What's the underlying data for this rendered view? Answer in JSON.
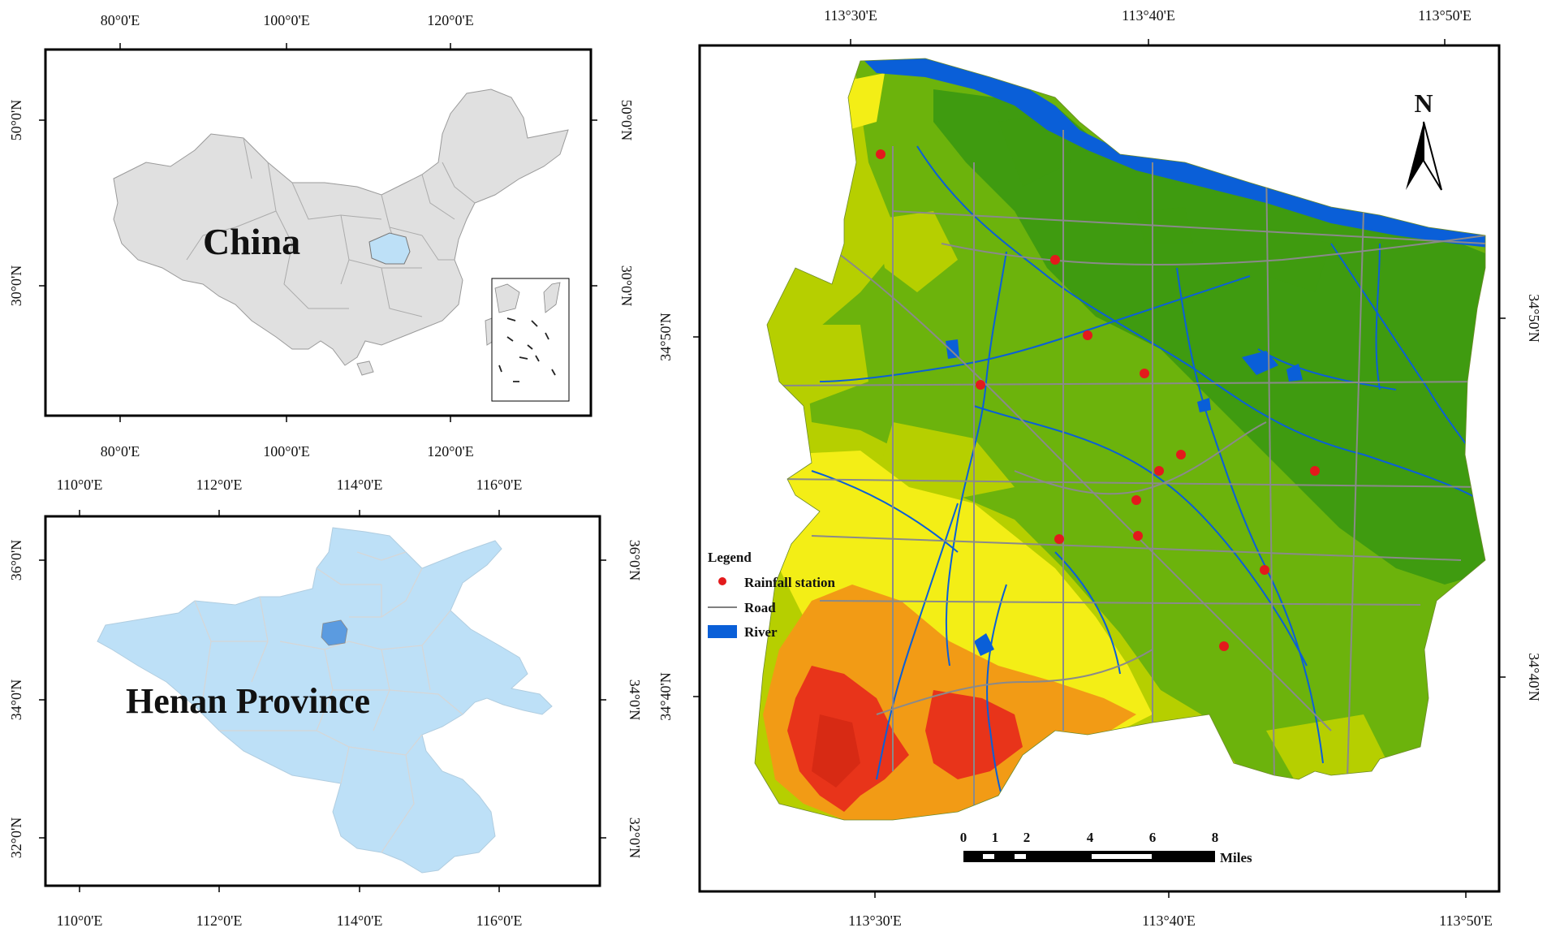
{
  "china_panel": {
    "label": "China",
    "lon_labels": [
      "80°0'E",
      "100°0'E",
      "120°0'E"
    ],
    "lat_labels": [
      "50°0'N",
      "30°0'N"
    ],
    "colors": {
      "land": "#e0e0e0",
      "highlight": "#bde0f7",
      "border": "#b0b0b0"
    }
  },
  "henan_panel": {
    "label": "Henan Province",
    "lon_labels": [
      "110°0'E",
      "112°0'E",
      "114°0'E",
      "116°0'E"
    ],
    "lat_labels": [
      "36°0'N",
      "34°0'N",
      "32°0'N"
    ],
    "colors": {
      "province": "#bde0f7",
      "city": "#5b9be0",
      "border": "#c8c8c8"
    }
  },
  "study_panel": {
    "lon_labels": [
      "113°30'E",
      "113°40'E",
      "113°50'E"
    ],
    "lat_labels": [
      "34°50'N",
      "34°40'N"
    ],
    "north_label": "N",
    "legend": {
      "title": "Legend",
      "items": [
        {
          "label": "Rainfall station",
          "symbol": "dot",
          "color": "#e31a1c"
        },
        {
          "label": "Road",
          "symbol": "line",
          "color": "#808080"
        },
        {
          "label": "River",
          "symbol": "box",
          "color": "#0a5fd8"
        }
      ]
    },
    "scale_bar": {
      "ticks": [
        "0",
        "1",
        "2",
        "4",
        "6",
        "8"
      ],
      "unit": "Miles"
    },
    "colors": {
      "green_dark": "#3f9b10",
      "green": "#6cb30c",
      "yellow_green": "#b6cf00",
      "yellow": "#f3ee16",
      "orange": "#f29b15",
      "red": "#e8341a",
      "river": "#0a5fd8",
      "road": "#8a8a8a"
    }
  }
}
